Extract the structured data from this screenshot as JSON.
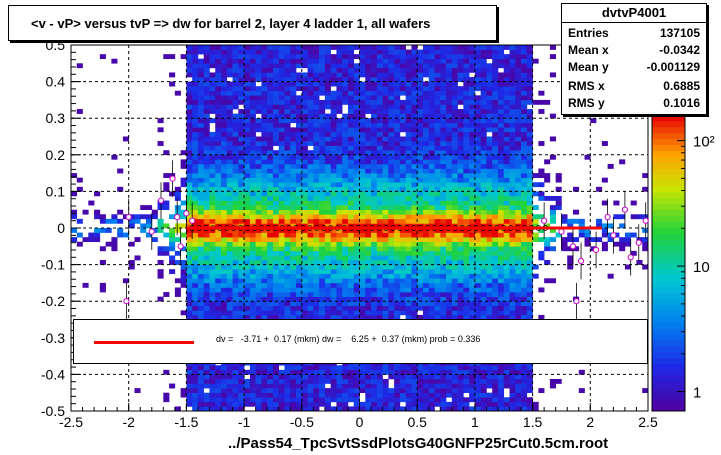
{
  "title": "<v - vP>       versus  tvP =>  dw for barrel 2, layer 4 ladder 1, all wafers",
  "stats": {
    "name": "dvtvP4001",
    "rows": [
      {
        "label": "Entries",
        "value": "137105"
      },
      {
        "label": "Mean x",
        "value": "-0.0342"
      },
      {
        "label": "Mean y",
        "value": "-0.001129"
      },
      {
        "label": "RMS x",
        "value": "0.6885"
      },
      {
        "label": "RMS y",
        "value": "0.1016"
      }
    ]
  },
  "fit_text": "dv =   -3.71 +  0.17 (mkm) dw =    6.25 +  0.37 (mkm) prob = 0.336",
  "file_label": "../Pass54_TpcSvtSsdPlotsG40GNFP25rCut0.5cm.root",
  "colors": {
    "fit_line": "#ff0000",
    "background": "#ffffff"
  },
  "chart_data": {
    "type": "heatmap",
    "xlim": [
      -2.5,
      2.5
    ],
    "ylim": [
      -0.5,
      0.5
    ],
    "x_ticks": [
      "-2.5",
      "-2",
      "-1.5",
      "-1",
      "-0.5",
      "0",
      "0.5",
      "1",
      "1.5",
      "2",
      "2.5"
    ],
    "y_ticks": [
      "-0.5",
      "-0.4",
      "-0.3",
      "-0.2",
      "-0.1",
      "0",
      "0.1",
      "0.2",
      "0.3",
      "0.4",
      "0.5"
    ],
    "grid": true,
    "colorbar": {
      "scale": "log",
      "labels": [
        "1",
        "10",
        "10²"
      ],
      "label_values": [
        1,
        10,
        100
      ],
      "min": 0.7,
      "max": 160
    },
    "profile_points": [
      {
        "x": -2.0,
        "y": 0.03
      },
      {
        "x": -1.8,
        "y": -0.01
      },
      {
        "x": -1.72,
        "y": 0.075
      },
      {
        "x": -1.62,
        "y": 0.135
      },
      {
        "x": -1.58,
        "y": 0.03
      },
      {
        "x": -1.55,
        "y": -0.05
      },
      {
        "x": -1.5,
        "y": 0.04
      },
      {
        "x": -1.45,
        "y": 0.02
      },
      {
        "x": -2.02,
        "y": -0.2
      },
      {
        "x": 1.6,
        "y": 0.02
      },
      {
        "x": 1.75,
        "y": -0.01
      },
      {
        "x": 1.85,
        "y": -0.05
      },
      {
        "x": 1.92,
        "y": -0.09
      },
      {
        "x": 2.05,
        "y": -0.06
      },
      {
        "x": 2.15,
        "y": 0.03
      },
      {
        "x": 2.2,
        "y": -0.02
      },
      {
        "x": 2.3,
        "y": 0.05
      },
      {
        "x": 2.35,
        "y": -0.08
      },
      {
        "x": 2.42,
        "y": -0.04
      },
      {
        "x": 2.48,
        "y": 0.02
      },
      {
        "x": 1.88,
        "y": -0.2
      }
    ],
    "fit_line": {
      "x": [
        -1.5,
        2.1
      ],
      "y": [
        0.0,
        0.0
      ]
    }
  }
}
